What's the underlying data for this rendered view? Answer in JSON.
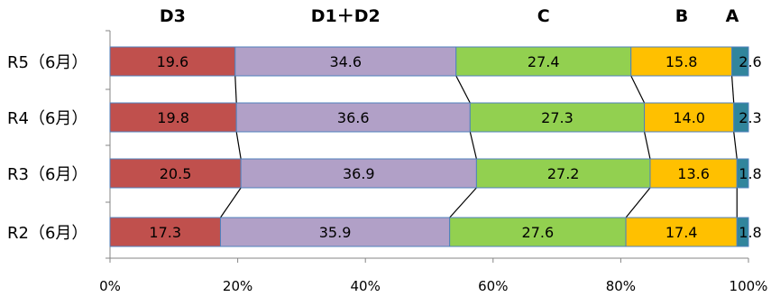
{
  "chart_data": {
    "type": "bar",
    "orientation": "horizontal",
    "stacked": "percent",
    "categories": [
      "R5（6月）",
      "R4（6月）",
      "R3（6月）",
      "R2（6月）"
    ],
    "series": [
      {
        "name": "D3",
        "color": "#c0504d",
        "values": [
          19.6,
          19.8,
          20.5,
          17.3
        ]
      },
      {
        "name": "D1＋D2",
        "color": "#b1a0c7",
        "values": [
          34.6,
          36.6,
          36.9,
          35.9
        ]
      },
      {
        "name": "C",
        "color": "#92d050",
        "values": [
          27.4,
          27.3,
          27.2,
          27.6
        ]
      },
      {
        "name": "B",
        "color": "#ffc000",
        "values": [
          15.8,
          14.0,
          13.6,
          17.4
        ]
      },
      {
        "name": "A",
        "color": "#31859c",
        "values": [
          2.6,
          2.3,
          1.8,
          1.8
        ]
      }
    ],
    "value_labels": [
      [
        "19.6",
        "34.6",
        "27.4",
        "15.8",
        "2.6"
      ],
      [
        "19.8",
        "36.6",
        "27.3",
        "14.0",
        "2.3"
      ],
      [
        "20.5",
        "36.9",
        "27.2",
        "13.6",
        "1.8"
      ],
      [
        "17.3",
        "35.9",
        "27.6",
        "17.4",
        "1.8"
      ]
    ],
    "xlim": [
      0,
      100
    ],
    "xticks": [
      "0%",
      "20%",
      "40%",
      "60%",
      "80%",
      "100%"
    ],
    "legend": "series names printed above top bar",
    "series_lines": true,
    "grid": false
  }
}
